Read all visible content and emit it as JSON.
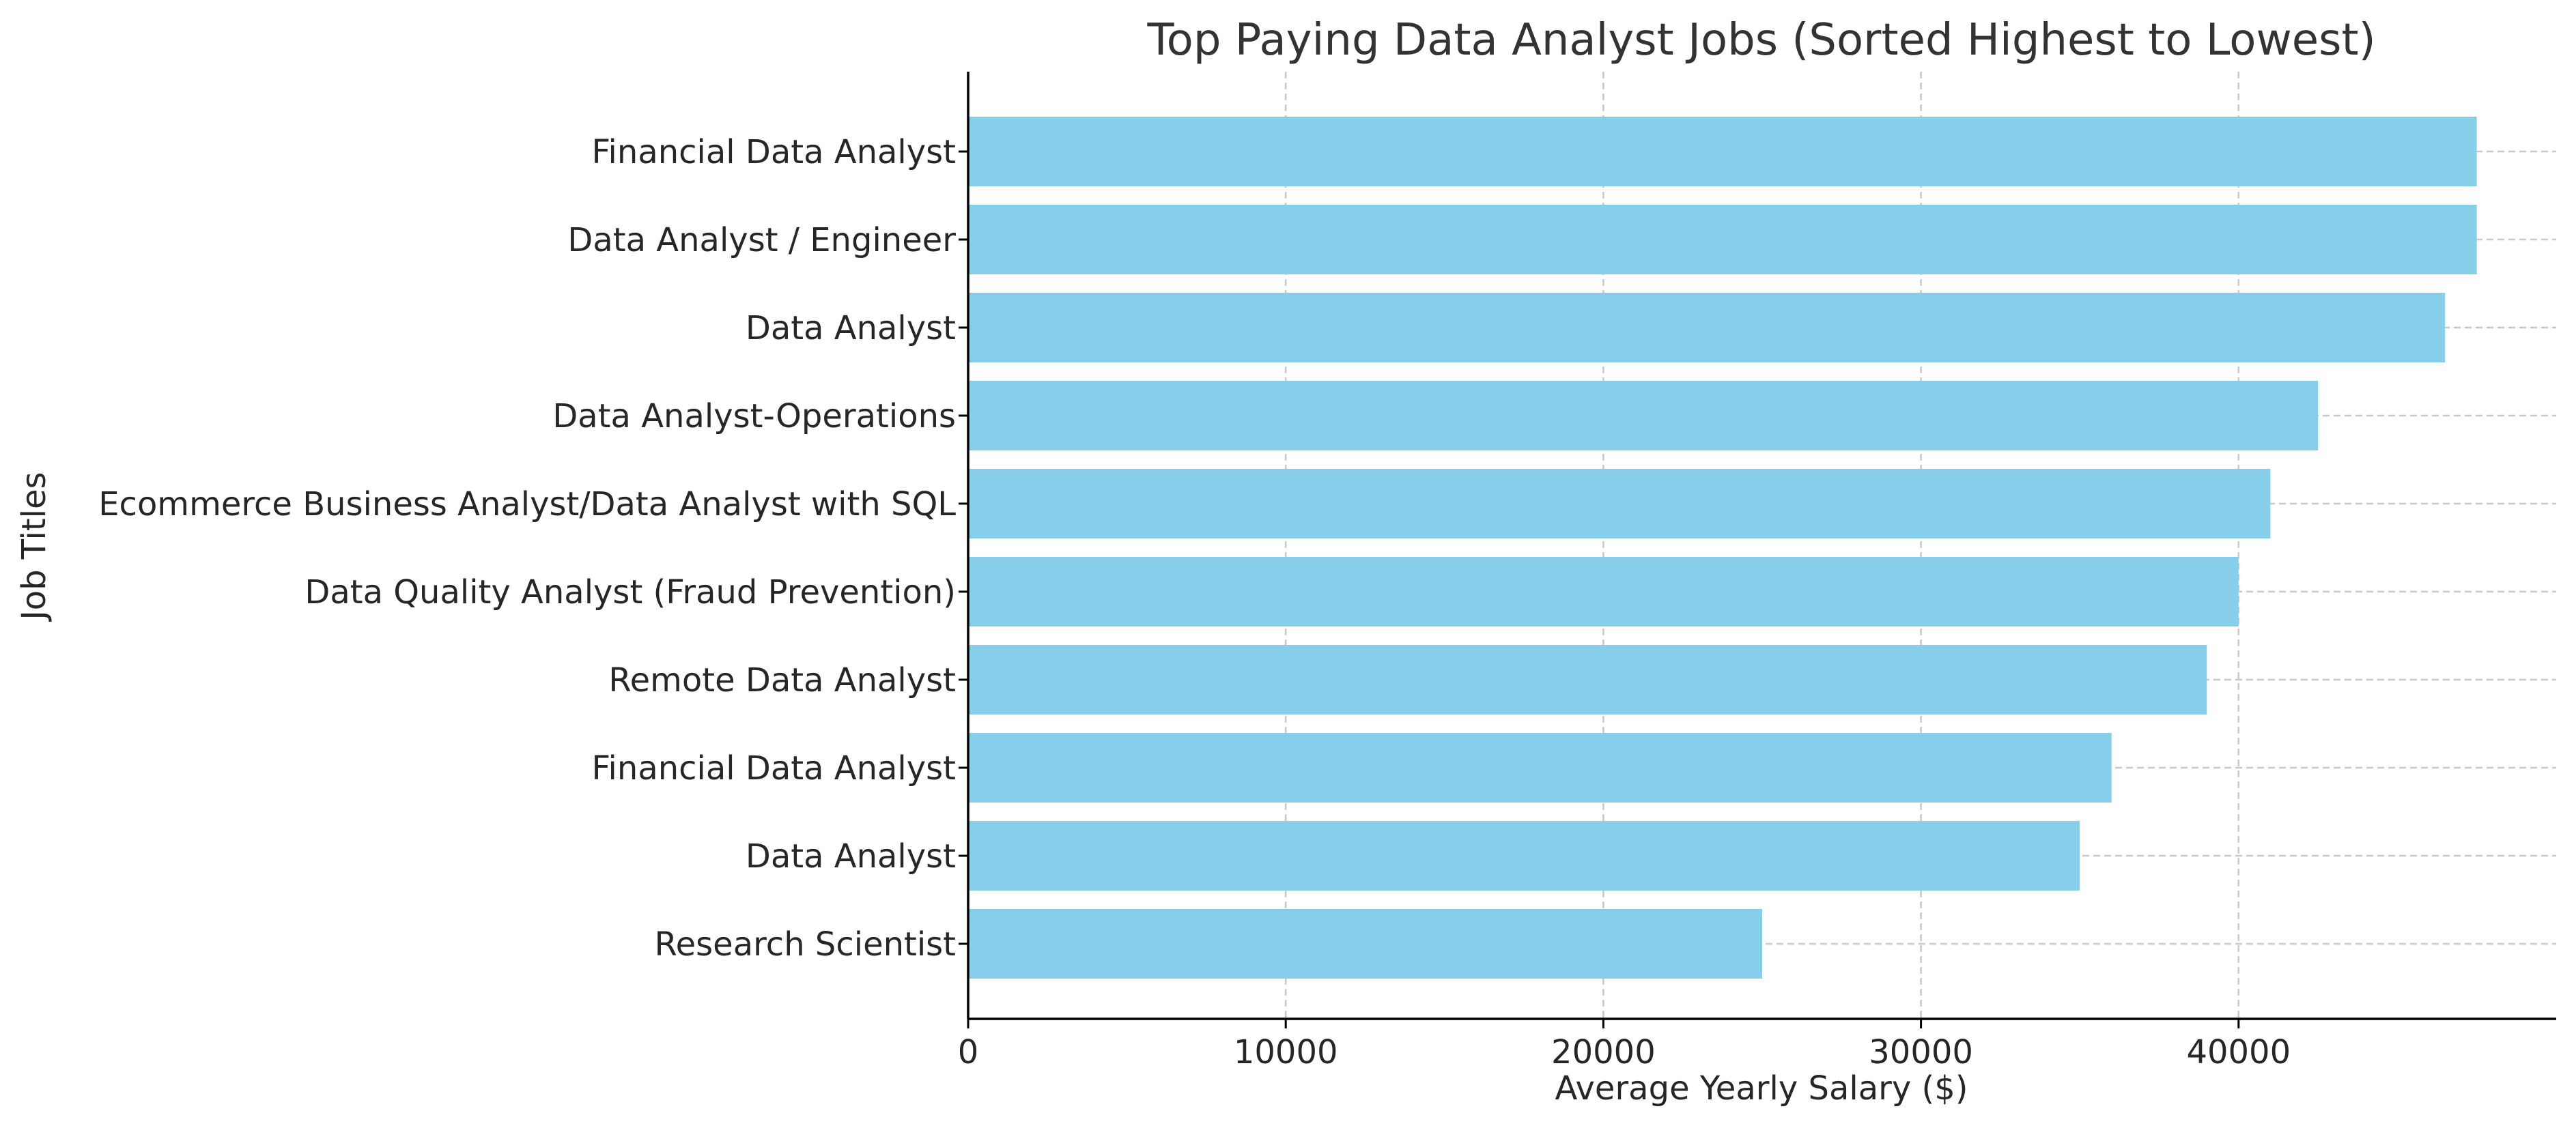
{
  "chart_data": {
    "type": "bar",
    "orientation": "horizontal",
    "title": "Top Paying Data Analyst Jobs (Sorted Highest to Lowest)",
    "xlabel": "Average Yearly Salary ($)",
    "ylabel": "Job Titles",
    "xlim": [
      0,
      50000
    ],
    "xticks": [
      0,
      10000,
      20000,
      30000,
      40000
    ],
    "grid": true,
    "bar_color": "#87CEEB",
    "categories": [
      "Financial Data Analyst",
      "Data Analyst / Engineer",
      "Data Analyst",
      "Data Analyst-Operations",
      "Ecommerce Business Analyst/Data Analyst with SQL",
      "Data Quality Analyst (Fraud Prevention)",
      "Remote Data Analyst",
      "Financial Data Analyst",
      "Data Analyst",
      "Research Scientist"
    ],
    "values": [
      47500,
      47500,
      46500,
      42500,
      41000,
      40000,
      39000,
      36000,
      35000,
      25000
    ]
  }
}
